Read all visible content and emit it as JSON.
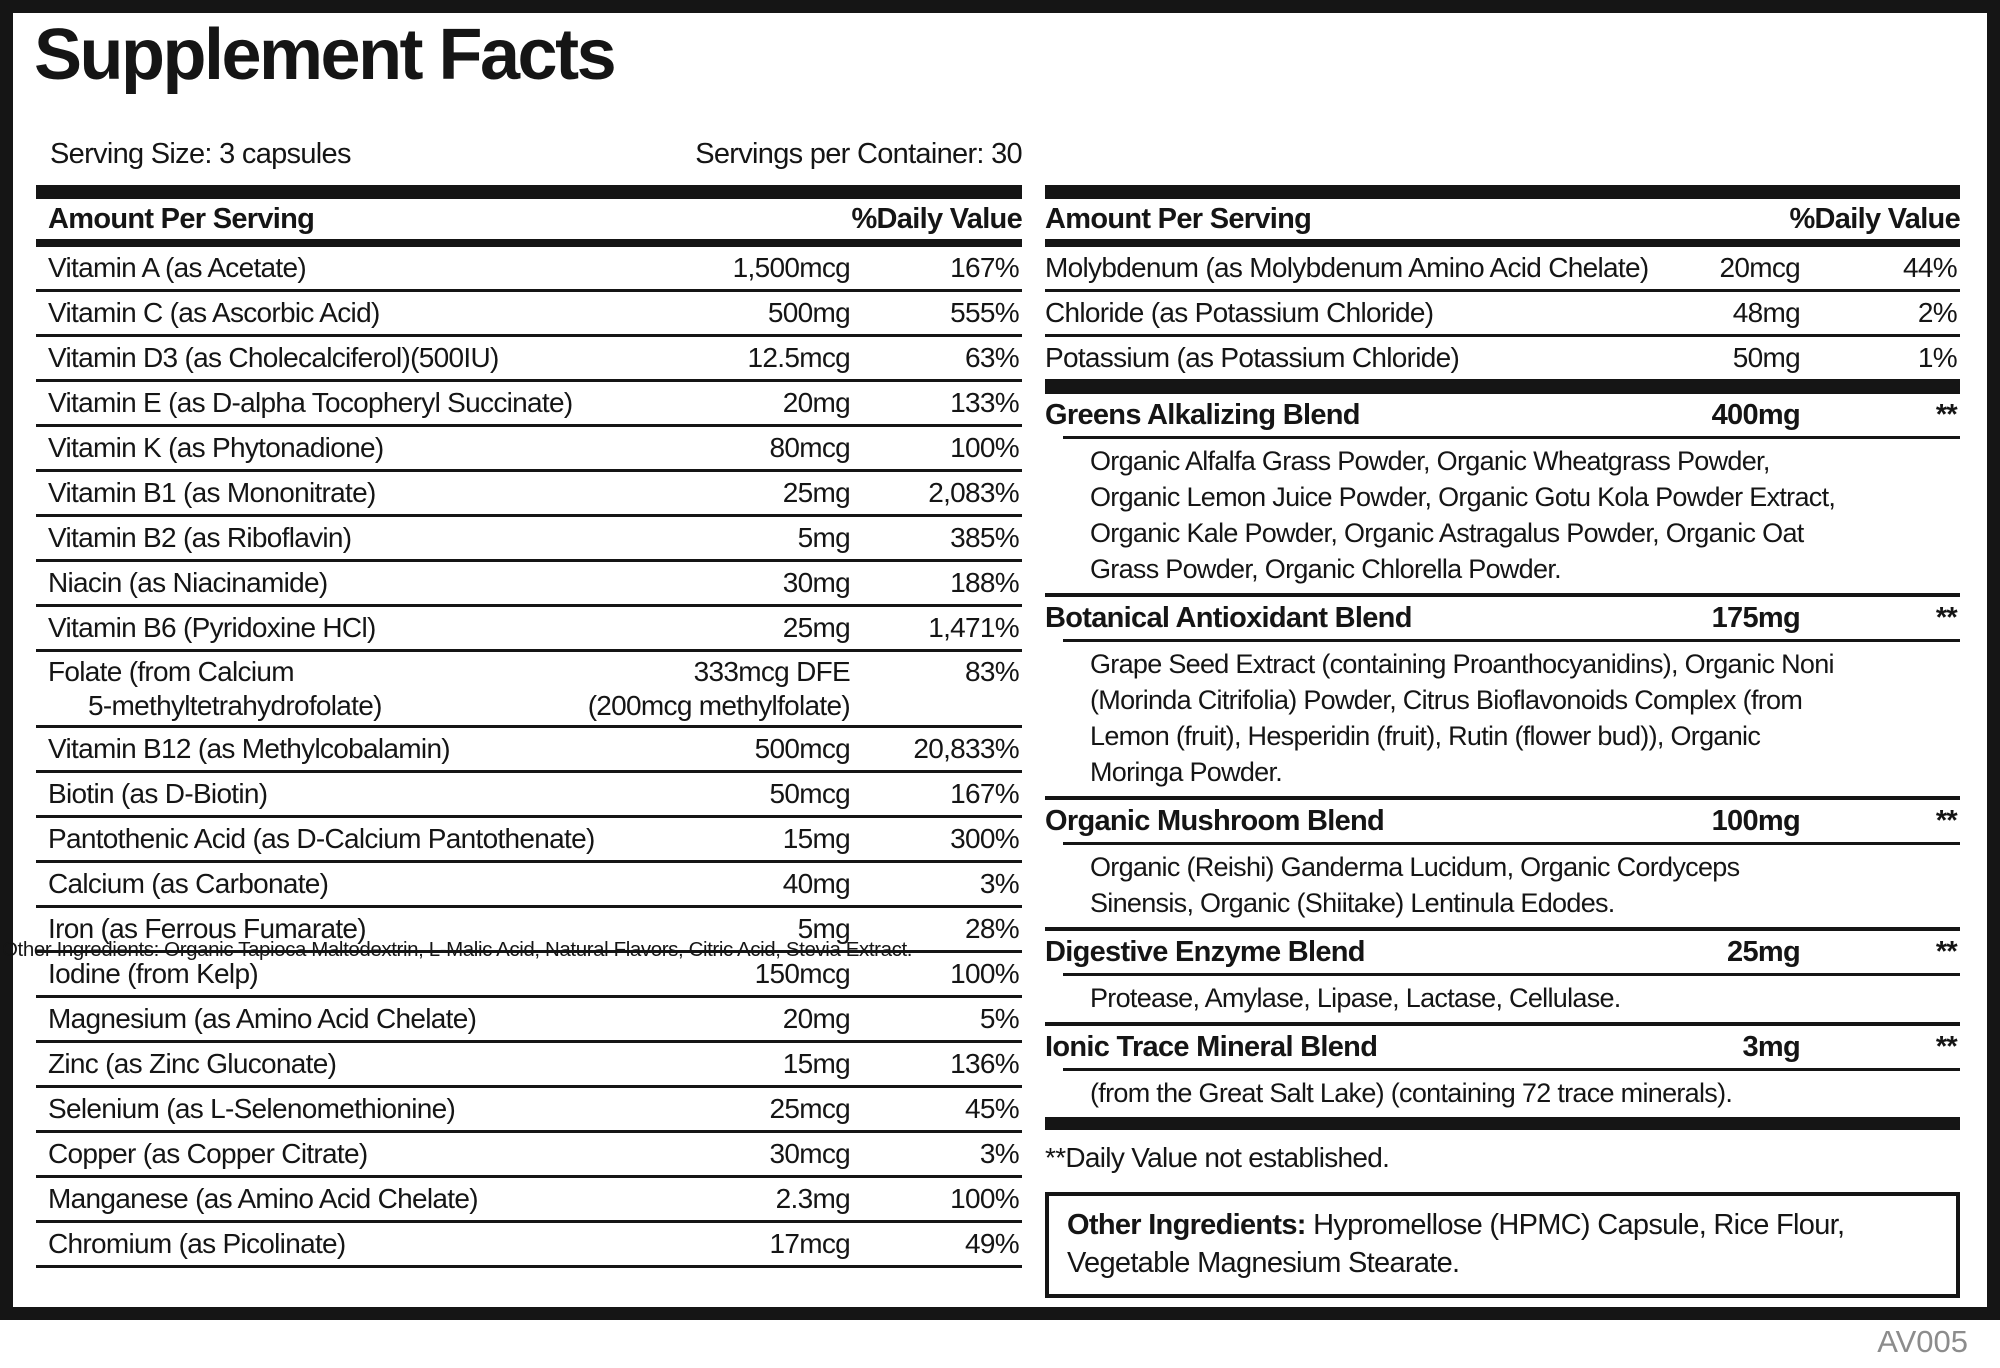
{
  "title": "Supplement Facts",
  "serving_size": "Serving Size: 3 capsules",
  "servings_per_container": "Servings per Container: 30",
  "left_table": {
    "header_amount": "Amount Per Serving",
    "header_dv": "%Daily Value",
    "rows": [
      {
        "name": "Vitamin A (as Acetate)",
        "amount": "1,500mcg",
        "dv": "167%"
      },
      {
        "name": "Vitamin C (as Ascorbic Acid)",
        "amount": "500mg",
        "dv": "555%"
      },
      {
        "name": "Vitamin D3 (as Cholecalciferol)(500IU)",
        "amount": "12.5mcg",
        "dv": "63%"
      },
      {
        "name": "Vitamin E (as D-alpha Tocopheryl Succinate)",
        "amount": "20mg",
        "dv": "133%"
      },
      {
        "name": "Vitamin K (as Phytonadione)",
        "amount": "80mcg",
        "dv": "100%"
      },
      {
        "name": "Vitamin B1 (as Mononitrate)",
        "amount": "25mg",
        "dv": "2,083%"
      },
      {
        "name": "Vitamin B2 (as Riboflavin)",
        "amount": "5mg",
        "dv": "385%"
      },
      {
        "name": "Niacin (as Niacinamide)",
        "amount": "30mg",
        "dv": "188%"
      },
      {
        "name": "Vitamin B6 (Pyridoxine HCl)",
        "amount": "25mg",
        "dv": "1,471%"
      },
      {
        "name": "Folate (from Calcium",
        "name2": "5-methyltetrahydrofolate)",
        "amount": "333mcg DFE",
        "amount2": "(200mcg methylfolate)",
        "dv": "83%"
      },
      {
        "name": "Vitamin B12 (as Methylcobalamin)",
        "amount": "500mcg",
        "dv": "20,833%"
      },
      {
        "name": "Biotin (as D-Biotin)",
        "amount": "50mcg",
        "dv": "167%"
      },
      {
        "name": "Pantothenic Acid (as D-Calcium Pantothenate)",
        "amount": "15mg",
        "dv": "300%"
      },
      {
        "name": "Calcium (as Carbonate)",
        "amount": "40mg",
        "dv": "3%"
      },
      {
        "name": "Iron (as Ferrous Fumarate)",
        "amount": "5mg",
        "dv": "28%"
      },
      {
        "name": "Iodine (from Kelp)",
        "amount": "150mcg",
        "dv": "100%"
      },
      {
        "name": "Magnesium (as Amino Acid Chelate)",
        "amount": "20mg",
        "dv": "5%"
      },
      {
        "name": "Zinc (as Zinc Gluconate)",
        "amount": "15mg",
        "dv": "136%"
      },
      {
        "name": "Selenium (as L-Selenomethionine)",
        "amount": "25mcg",
        "dv": "45%"
      },
      {
        "name": "Copper (as Copper Citrate)",
        "amount": "30mcg",
        "dv": "3%"
      },
      {
        "name": "Manganese (as Amino Acid Chelate)",
        "amount": "2.3mg",
        "dv": "100%"
      },
      {
        "name": "Chromium (as Picolinate)",
        "amount": "17mcg",
        "dv": "49%"
      }
    ]
  },
  "overlay_text": "Other Ingredients: Organic Tapioca Maltodextrin, L-Malic Acid, Natural Flavors, Citric Acid, Stevia Extract.",
  "right_table": {
    "header_amount": "Amount Per Serving",
    "header_dv": "%Daily Value",
    "rows": [
      {
        "name": "Molybdenum (as Molybdenum Amino Acid Chelate)",
        "amount": "20mcg",
        "dv": "44%"
      },
      {
        "name": "Chloride (as Potassium Chloride)",
        "amount": "48mg",
        "dv": "2%"
      },
      {
        "name": "Potassium (as Potassium Chloride)",
        "amount": "50mg",
        "dv": "1%"
      }
    ],
    "blends": [
      {
        "name": "Greens Alkalizing Blend",
        "amount": "400mg",
        "dv": "**",
        "desc": "Organic Alfalfa Grass Powder, Organic Wheatgrass Powder, Organic Lemon Juice Powder, Organic Gotu Kola Powder Extract, Organic Kale Powder, Organic Astragalus Powder, Organic Oat Grass Powder, Organic Chlorella Powder."
      },
      {
        "name": "Botanical Antioxidant Blend",
        "amount": "175mg",
        "dv": "**",
        "desc": "Grape Seed Extract (containing Proanthocyanidins), Organic Noni (Morinda Citrifolia) Powder, Citrus Bioflavonoids Complex (from Lemon (fruit), Hesperidin (fruit), Rutin (flower bud)), Organic Moringa Powder."
      },
      {
        "name": "Organic Mushroom Blend",
        "amount": "100mg",
        "dv": "**",
        "desc": "Organic (Reishi) Ganderma Lucidum, Organic Cordyceps Sinensis, Organic (Shiitake) Lentinula Edodes."
      },
      {
        "name": "Digestive Enzyme Blend",
        "amount": "25mg",
        "dv": "**",
        "desc": "Protease, Amylase, Lipase, Lactase, Cellulase."
      },
      {
        "name": "Ionic Trace Mineral Blend",
        "amount": "3mg",
        "dv": "**",
        "desc": "(from the Great Salt Lake) (containing 72 trace minerals)."
      }
    ]
  },
  "footnote": "**Daily Value not established.",
  "other_ingredients": {
    "label": "Other Ingredients:",
    "text": " Hypromellose (HPMC) Capsule, Rice Flour, Vegetable Magnesium Stearate."
  },
  "footer_code": "AV005",
  "colors": {
    "ink": "#151515",
    "code_gray": "#8c8c8c"
  }
}
